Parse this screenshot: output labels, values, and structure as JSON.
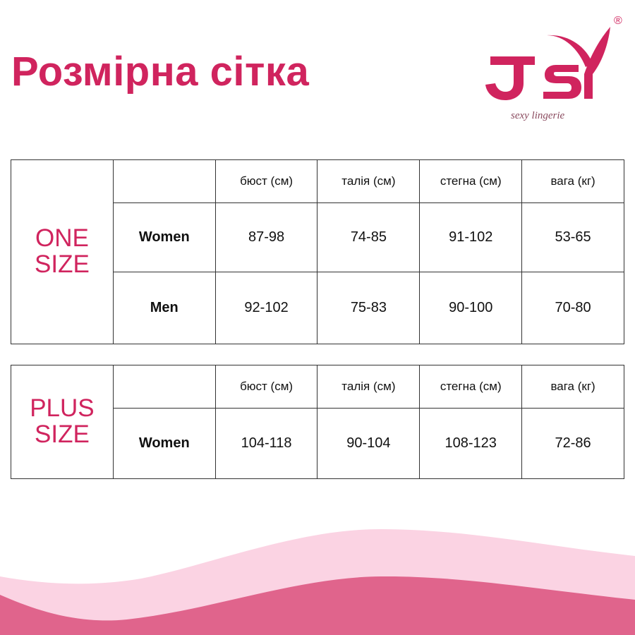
{
  "title": "Розмірна сітка",
  "logo": {
    "text": "JSY",
    "tagline": "sexy lingerie",
    "registered": "®",
    "color": "#d0245e"
  },
  "headers": [
    "бюст (см)",
    "талія (см)",
    "стегна (см)",
    "вага (кг)"
  ],
  "one_size": {
    "label_line1": "ONE",
    "label_line2": "SIZE",
    "rows": [
      {
        "label": "Women",
        "values": [
          "87-98",
          "74-85",
          "91-102",
          "53-65"
        ]
      },
      {
        "label": "Men",
        "values": [
          "92-102",
          "75-83",
          "90-100",
          "70-80"
        ]
      }
    ]
  },
  "plus_size": {
    "label_line1": "PLUS",
    "label_line2": "SIZE",
    "rows": [
      {
        "label": "Women",
        "values": [
          "104-118",
          "90-104",
          "108-123",
          "72-86"
        ]
      }
    ]
  },
  "colors": {
    "accent": "#d0245e",
    "wave_light": "#fbd3e3",
    "wave_dark": "#e0648c"
  }
}
